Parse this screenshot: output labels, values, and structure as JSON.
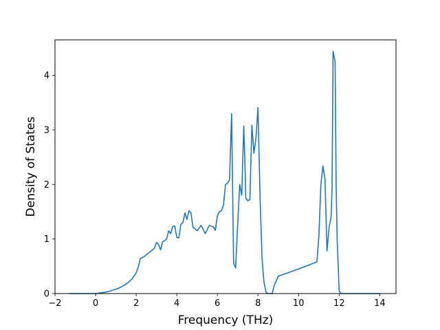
{
  "chart_data": {
    "type": "line",
    "title": "",
    "xlabel": "Frequency (THz)",
    "ylabel": "Density of States",
    "xlim": [
      -2,
      14.8
    ],
    "ylim": [
      0,
      4.65
    ],
    "xticks": [
      -2,
      0,
      2,
      4,
      6,
      8,
      10,
      12,
      14
    ],
    "yticks": [
      0,
      1,
      2,
      3,
      4
    ],
    "xtick_labels": [
      "−2",
      "0",
      "2",
      "4",
      "6",
      "8",
      "10",
      "12",
      "14"
    ],
    "ytick_labels": [
      "0",
      "1",
      "2",
      "3",
      "4"
    ],
    "grid": false,
    "legend": "none",
    "line_color": "#1f77b4",
    "x": [
      -1.3,
      -1.0,
      -0.5,
      0.0,
      0.2,
      0.4,
      0.6,
      0.8,
      1.0,
      1.2,
      1.4,
      1.6,
      1.8,
      2.0,
      2.1,
      2.2,
      2.3,
      2.4,
      2.5,
      2.6,
      2.7,
      2.8,
      2.9,
      3.0,
      3.1,
      3.2,
      3.3,
      3.4,
      3.5,
      3.6,
      3.7,
      3.8,
      3.9,
      4.0,
      4.1,
      4.2,
      4.3,
      4.4,
      4.5,
      4.6,
      4.7,
      4.8,
      4.9,
      5.0,
      5.2,
      5.4,
      5.6,
      5.8,
      5.9,
      6.0,
      6.1,
      6.2,
      6.3,
      6.4,
      6.5,
      6.6,
      6.7,
      6.8,
      6.9,
      7.0,
      7.1,
      7.2,
      7.3,
      7.35,
      7.4,
      7.5,
      7.6,
      7.7,
      7.8,
      7.9,
      8.0,
      8.1,
      8.2,
      8.25,
      8.3,
      8.4,
      8.5,
      8.6,
      8.7,
      8.8,
      8.9,
      9.0,
      10.0,
      10.9,
      11.0,
      11.1,
      11.2,
      11.3,
      11.4,
      11.5,
      11.6,
      11.65,
      11.7,
      11.8,
      11.85,
      11.9,
      12.0,
      12.1,
      12.2,
      12.3,
      12.4,
      12.5,
      12.6,
      12.7,
      12.8,
      13.0,
      14.0
    ],
    "y": [
      0,
      0,
      0,
      0,
      0.01,
      0.02,
      0.035,
      0.055,
      0.08,
      0.11,
      0.15,
      0.2,
      0.27,
      0.38,
      0.48,
      0.64,
      0.66,
      0.68,
      0.71,
      0.74,
      0.77,
      0.8,
      0.83,
      0.94,
      0.9,
      0.8,
      0.95,
      0.97,
      1.0,
      1.15,
      1.1,
      1.23,
      1.24,
      1.03,
      1.02,
      1.27,
      1.3,
      1.48,
      1.36,
      1.52,
      1.48,
      1.21,
      1.19,
      1.15,
      1.25,
      1.1,
      1.25,
      1.22,
      1.16,
      1.43,
      1.5,
      1.52,
      1.62,
      2.0,
      2.02,
      2.09,
      3.3,
      0.55,
      0.47,
      1.28,
      2.0,
      1.8,
      3.07,
      2.5,
      1.75,
      1.7,
      1.72,
      3.09,
      2.57,
      2.85,
      3.41,
      1.8,
      0.65,
      0.4,
      0.2,
      0.02,
      0,
      0,
      0,
      0.15,
      0.23,
      0.32,
      0.45,
      0.58,
      1.05,
      2.0,
      2.34,
      2.1,
      0.78,
      1.2,
      1.4,
      1.93,
      4.44,
      4.25,
      2.0,
      1.0,
      0.05,
      0,
      0,
      0,
      0,
      0,
      0,
      0,
      0,
      0,
      0
    ]
  }
}
